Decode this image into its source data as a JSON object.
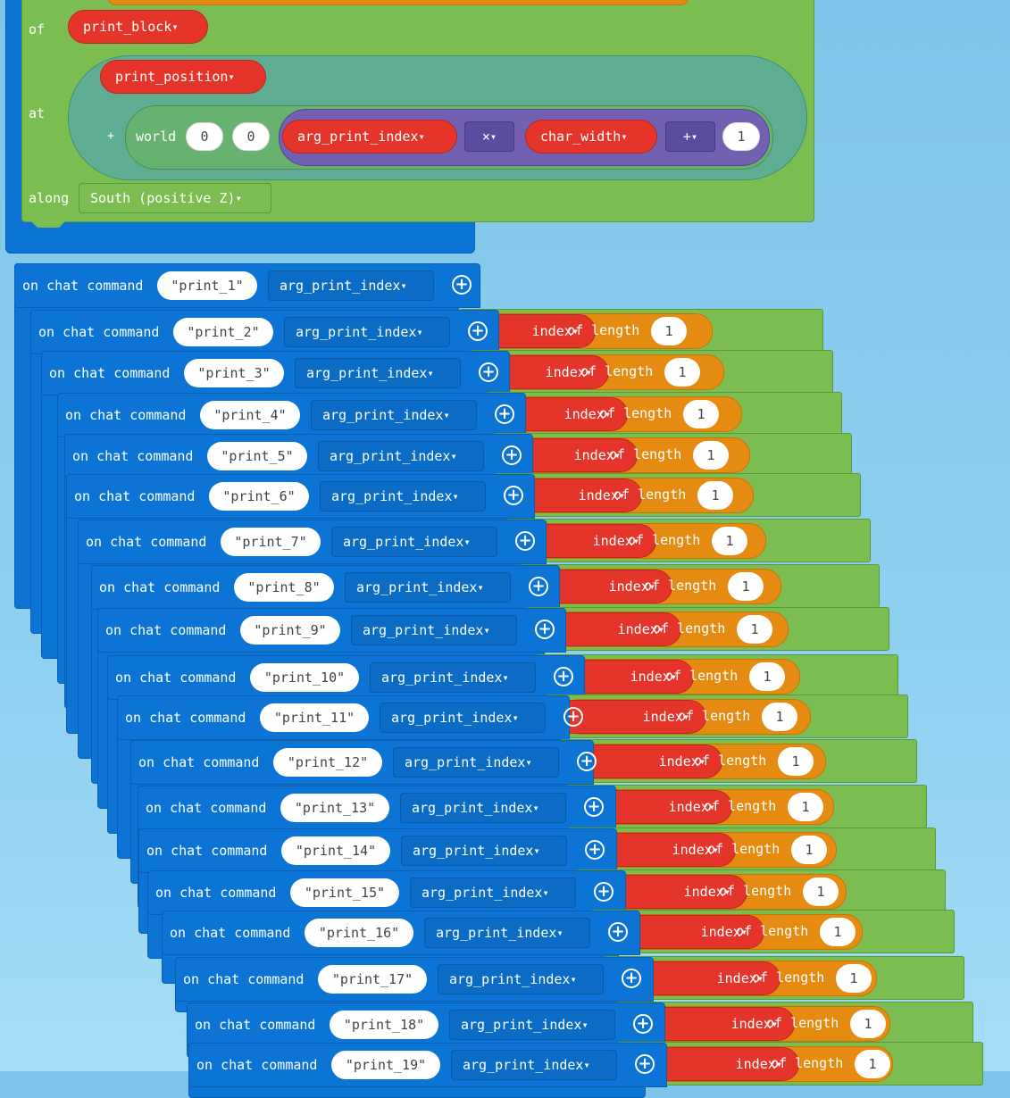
{
  "top_block": {
    "of_label": "of",
    "print_block": "print_block",
    "at_label": "at",
    "print_position": "print_position",
    "plus_sign": "+",
    "world_label": "world",
    "world_x": "0",
    "world_z": "0",
    "arg_print_index": "arg_print_index",
    "multiply_op": "×",
    "char_width": "char_width",
    "add_op": "+",
    "add_value": "1",
    "along_label": "along",
    "along_value": "South (positive Z)"
  },
  "command_common": {
    "on_chat_command": "on chat command",
    "arg_label": "arg_print_index",
    "red_suffix": "index",
    "of_length": "of length",
    "length_value": "1"
  },
  "commands": [
    {
      "name": "\"print_1\""
    },
    {
      "name": "\"print_2\""
    },
    {
      "name": "\"print_3\""
    },
    {
      "name": "\"print_4\""
    },
    {
      "name": "\"print_5\""
    },
    {
      "name": "\"print_6\""
    },
    {
      "name": "\"print_7\""
    },
    {
      "name": "\"print_8\""
    },
    {
      "name": "\"print_9\""
    },
    {
      "name": "\"print_10\""
    },
    {
      "name": "\"print_11\""
    },
    {
      "name": "\"print_12\""
    },
    {
      "name": "\"print_13\""
    },
    {
      "name": "\"print_14\""
    },
    {
      "name": "\"print_15\""
    },
    {
      "name": "\"print_16\""
    },
    {
      "name": "\"print_17\""
    },
    {
      "name": "\"print_18\""
    },
    {
      "name": "\"print_19\""
    }
  ],
  "colors": {
    "event_blue": "#0b74d4",
    "logic_green": "#7cbd52",
    "variable_red": "#e5352b",
    "text_orange": "#e68b12",
    "math_purple": "#7161b0",
    "position_teal": "#5fae94"
  }
}
